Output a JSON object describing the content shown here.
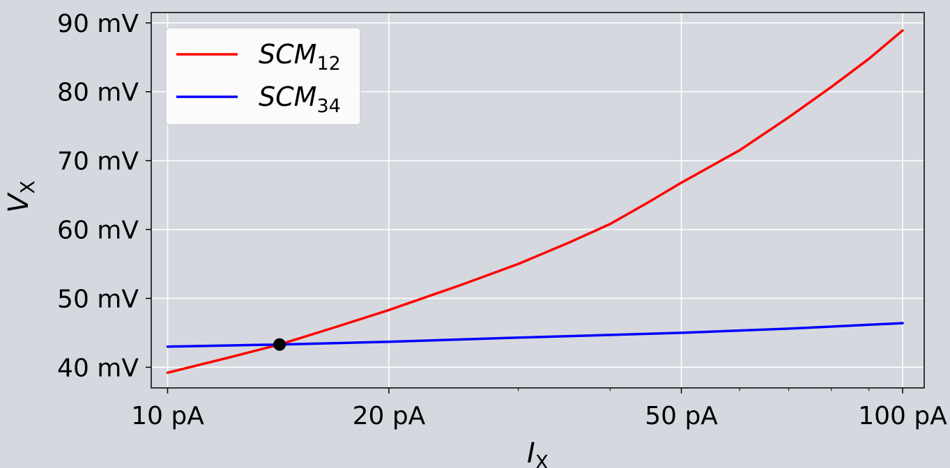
{
  "chart_data": {
    "type": "line",
    "xscale": "log",
    "xlim": [
      9.5,
      107
    ],
    "ylim": [
      37.0,
      91.5
    ],
    "xticks": [
      {
        "value": 10,
        "label": "10 pA"
      },
      {
        "value": 20,
        "label": "20 pA"
      },
      {
        "value": 50,
        "label": "50 pA"
      },
      {
        "value": 100,
        "label": "100 pA"
      }
    ],
    "yticks": [
      {
        "value": 40,
        "label": "40 mV"
      },
      {
        "value": 50,
        "label": "50 mV"
      },
      {
        "value": 60,
        "label": "60 mV"
      },
      {
        "value": 70,
        "label": "70 mV"
      },
      {
        "value": 80,
        "label": "80 mV"
      },
      {
        "value": 90,
        "label": "90 mV"
      }
    ],
    "xlabel": {
      "base": "I",
      "sub": "X"
    },
    "ylabel": {
      "base": "V",
      "sub": "X"
    },
    "grid": true,
    "legend_position": "top-left",
    "series": [
      {
        "name": {
          "base": "SCM",
          "sub": "12"
        },
        "color": "#ff0000",
        "x": [
          10,
          12,
          14.2,
          17,
          20,
          25,
          30,
          35,
          40,
          45,
          50,
          60,
          70,
          80,
          90,
          100
        ],
        "y": [
          39.2,
          41.3,
          43.3,
          45.9,
          48.3,
          51.9,
          55.0,
          58.0,
          60.8,
          63.9,
          66.8,
          71.5,
          76.3,
          80.7,
          84.8,
          88.9
        ]
      },
      {
        "name": {
          "base": "SCM",
          "sub": "34"
        },
        "color": "#0000ff",
        "x": [
          10,
          14.2,
          20,
          30,
          50,
          70,
          100
        ],
        "y": [
          43.0,
          43.3,
          43.7,
          44.3,
          45.0,
          45.6,
          46.4
        ]
      }
    ],
    "annotations": [
      {
        "type": "point",
        "x": 14.2,
        "y": 43.3,
        "color": "#000000"
      }
    ]
  }
}
